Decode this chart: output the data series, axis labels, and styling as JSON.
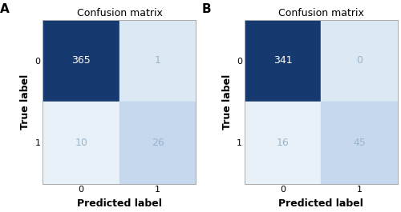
{
  "panels": [
    {
      "label": "A",
      "title": "Confusion matrix",
      "matrix": [
        [
          365,
          1
        ],
        [
          10,
          26
        ]
      ],
      "xlabel": "Predicted label",
      "ylabel": "True label",
      "xtick_labels": [
        "0",
        "1"
      ],
      "ytick_labels": [
        "0",
        "1"
      ]
    },
    {
      "label": "B",
      "title": "Confusion matrix",
      "matrix": [
        [
          341,
          0
        ],
        [
          16,
          45
        ]
      ],
      "xlabel": "Predicted label",
      "ylabel": "True label",
      "xtick_labels": [
        "0",
        "1"
      ],
      "ytick_labels": [
        "0",
        "1"
      ]
    }
  ],
  "color_high": "#163a70",
  "color_light1": "#dce8f3",
  "color_light2": "#e8f1f8",
  "color_medium": "#c5d8ed",
  "text_color_dark": "#9ab5cc",
  "text_color_light": "#ffffff",
  "background_color": "#ffffff",
  "panel_label_fontsize": 11,
  "title_fontsize": 9,
  "tick_fontsize": 8,
  "value_fontsize": 9,
  "axis_label_fontsize": 9
}
